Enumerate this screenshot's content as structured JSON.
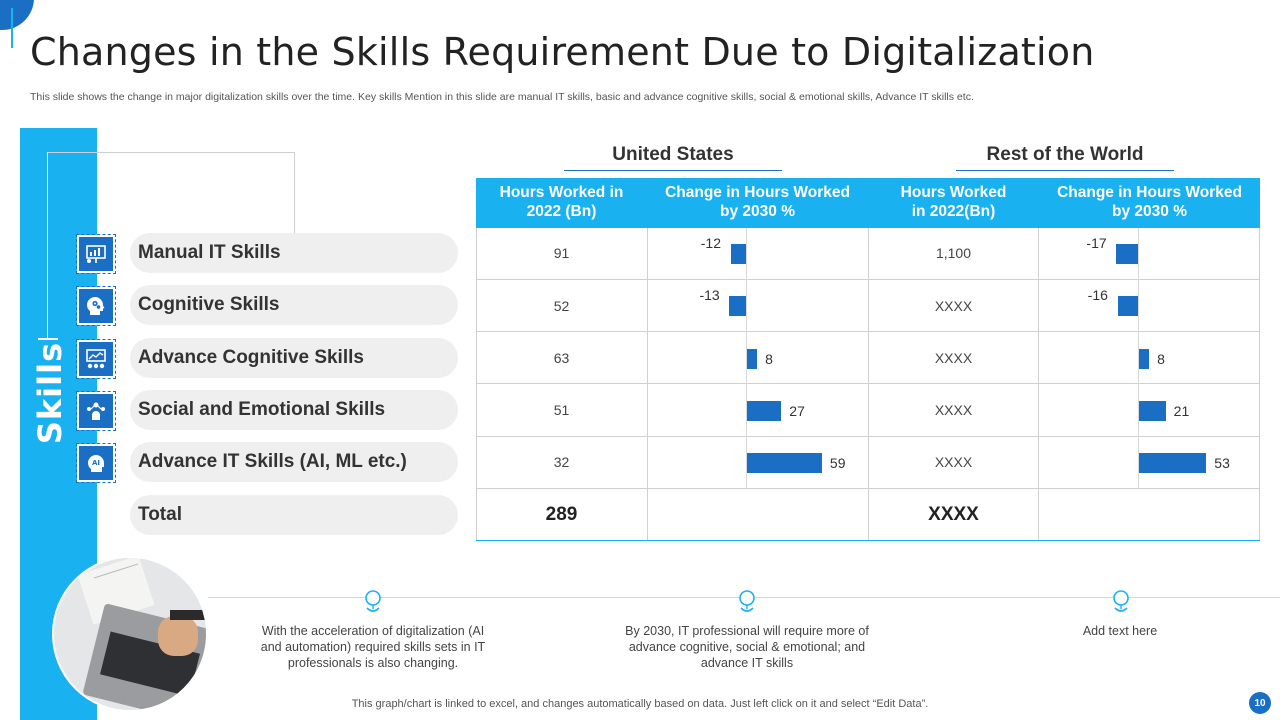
{
  "title": "Changes in the Skills Requirement Due to Digitalization",
  "subtitle": "This slide shows the change in major digitalization skills over the time. Key skills Mention in this slide are manual IT skills, basic and advance cognitive skills, social & emotional skills, Advance IT skills etc.",
  "sidebar": {
    "label": "Skills"
  },
  "skills": [
    {
      "label": "Manual IT Skills",
      "icon": "chart-presentation-icon"
    },
    {
      "label": "Cognitive Skills",
      "icon": "brain-gears-icon"
    },
    {
      "label": "Advance Cognitive Skills",
      "icon": "analytics-board-icon"
    },
    {
      "label": "Social and Emotional Skills",
      "icon": "people-network-icon"
    },
    {
      "label": "Advance IT Skills (AI, ML etc.)",
      "icon": "ai-head-icon"
    }
  ],
  "total_label": "Total",
  "regions": {
    "us": "United States",
    "row": "Rest of the World"
  },
  "table": {
    "headers": [
      "Hours Worked in 2022 (Bn)",
      "Change in Hours Worked by 2030 %",
      "Hours Worked in 2022(Bn)",
      "Change in Hours Worked by 2030 %"
    ],
    "us_hours": [
      "91",
      "52",
      "63",
      "51",
      "32"
    ],
    "row_hours": [
      "1,100",
      "XXXX",
      "XXXX",
      "XXXX",
      "XXXX"
    ],
    "us_total": "289",
    "row_total": "XXXX"
  },
  "chart_data": {
    "type": "bar",
    "orientation": "horizontal",
    "categories": [
      "Manual IT Skills",
      "Cognitive Skills",
      "Advance Cognitive Skills",
      "Social and Emotional Skills",
      "Advance IT Skills (AI, ML etc.)"
    ],
    "series": [
      {
        "name": "United States - Change in Hours Worked by 2030 %",
        "values": [
          -12,
          -13,
          8,
          27,
          59
        ]
      },
      {
        "name": "Rest of the World - Change in Hours Worked by 2030 %",
        "values": [
          -17,
          -16,
          8,
          21,
          53
        ]
      }
    ],
    "labels": {
      "us": [
        "-12",
        "-13",
        "8",
        "27",
        "59"
      ],
      "row": [
        "-17",
        "-16",
        "8",
        "21",
        "53"
      ]
    }
  },
  "notes": [
    "With the acceleration of digitalization (AI and automation) required  skills sets in IT professionals  is also changing.",
    "By 2030, IT professional will require more of advance cognitive,  social & emotional; and advance  IT  skills",
    "Add text here"
  ],
  "footer": "This graph/chart is linked to excel,  and changes automatically based on data. Just left click on it and select “Edit Data”.",
  "page_number": "10",
  "colors": {
    "accent": "#1ab1f0",
    "dark_blue": "#1a6fc4",
    "pill": "#efefef"
  }
}
